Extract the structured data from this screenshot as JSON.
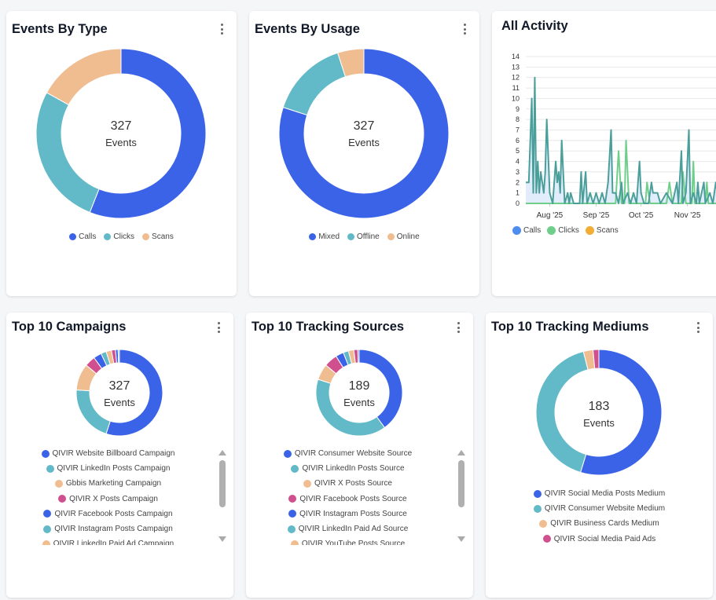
{
  "colors": {
    "blue": "#3b63e8",
    "teal": "#62b9c7",
    "peach": "#f0bd90",
    "pink": "#d04f8e",
    "calls_line": "#4a9f9b",
    "clicks_line": "#6fcf8a",
    "scans": "#f2ad35",
    "calls_legend": "#4e8cf0"
  },
  "events_by_type": {
    "title": "Events By Type",
    "total": "327",
    "unit": "Events",
    "slices": [
      {
        "label": "Calls",
        "pct": 56,
        "color": "#3b63e8"
      },
      {
        "label": "Clicks",
        "pct": 27,
        "color": "#62b9c7"
      },
      {
        "label": "Scans",
        "pct": 17,
        "color": "#f0bd90"
      }
    ]
  },
  "events_by_usage": {
    "title": "Events By Usage",
    "total": "327",
    "unit": "Events",
    "slices": [
      {
        "label": "Mixed",
        "pct": 80,
        "color": "#3b63e8"
      },
      {
        "label": "Offline",
        "pct": 15,
        "color": "#62b9c7"
      },
      {
        "label": "Online",
        "pct": 5,
        "color": "#f0bd90"
      }
    ]
  },
  "all_activity": {
    "title": "All Activity",
    "chart_data": {
      "type": "line",
      "ylim": [
        0,
        14
      ],
      "yticks": [
        0,
        1,
        2,
        3,
        4,
        5,
        6,
        7,
        8,
        9,
        10,
        11,
        12,
        13,
        14
      ],
      "xlim": [
        "2025-07-16",
        "2025-11-28"
      ],
      "xticks": [
        {
          "date": "2025-08-01",
          "label": "Aug '25"
        },
        {
          "date": "2025-09-01",
          "label": "Sep '25"
        },
        {
          "date": "2025-10-01",
          "label": "Oct '25"
        },
        {
          "date": "2025-11-01",
          "label": "Nov '25"
        }
      ],
      "grid": true,
      "legend": "bottom-left",
      "series": [
        {
          "name": "Calls",
          "color": "#4a9f9b",
          "points": [
            [
              "2025-07-16",
              2
            ],
            [
              "2025-07-18",
              2
            ],
            [
              "2025-07-20",
              10
            ],
            [
              "2025-07-21",
              1
            ],
            [
              "2025-07-22",
              12
            ],
            [
              "2025-07-23",
              1
            ],
            [
              "2025-07-24",
              4
            ],
            [
              "2025-07-25",
              1
            ],
            [
              "2025-07-26",
              3
            ],
            [
              "2025-07-28",
              1
            ],
            [
              "2025-07-29",
              3
            ],
            [
              "2025-07-30",
              8
            ],
            [
              "2025-08-01",
              1
            ],
            [
              "2025-08-03",
              0
            ],
            [
              "2025-08-05",
              4
            ],
            [
              "2025-08-06",
              2
            ],
            [
              "2025-08-07",
              3
            ],
            [
              "2025-08-08",
              1
            ],
            [
              "2025-08-09",
              6
            ],
            [
              "2025-08-11",
              0
            ],
            [
              "2025-08-13",
              1
            ],
            [
              "2025-08-14",
              0
            ],
            [
              "2025-08-15",
              1
            ],
            [
              "2025-08-17",
              0
            ],
            [
              "2025-08-21",
              0
            ],
            [
              "2025-08-22",
              3
            ],
            [
              "2025-08-23",
              0
            ],
            [
              "2025-08-25",
              3
            ],
            [
              "2025-08-26",
              0
            ],
            [
              "2025-08-28",
              1
            ],
            [
              "2025-08-30",
              0
            ],
            [
              "2025-09-01",
              1
            ],
            [
              "2025-09-03",
              0
            ],
            [
              "2025-09-05",
              1
            ],
            [
              "2025-09-07",
              0
            ],
            [
              "2025-09-09",
              2
            ],
            [
              "2025-09-11",
              7
            ],
            [
              "2025-09-12",
              1
            ],
            [
              "2025-09-14",
              1
            ],
            [
              "2025-09-16",
              0
            ],
            [
              "2025-09-18",
              2
            ],
            [
              "2025-09-19",
              0
            ],
            [
              "2025-09-22",
              1
            ],
            [
              "2025-09-24",
              0
            ],
            [
              "2025-09-26",
              1
            ],
            [
              "2025-09-28",
              0
            ],
            [
              "2025-09-30",
              4
            ],
            [
              "2025-10-01",
              1
            ],
            [
              "2025-10-03",
              0
            ],
            [
              "2025-10-06",
              0
            ],
            [
              "2025-10-08",
              2
            ],
            [
              "2025-10-09",
              1
            ],
            [
              "2025-10-12",
              1
            ],
            [
              "2025-10-14",
              0
            ],
            [
              "2025-10-18",
              1
            ],
            [
              "2025-10-22",
              0
            ],
            [
              "2025-10-25",
              2
            ],
            [
              "2025-10-26",
              0
            ],
            [
              "2025-10-28",
              5
            ],
            [
              "2025-10-29",
              0
            ],
            [
              "2025-10-31",
              1
            ],
            [
              "2025-11-02",
              7
            ],
            [
              "2025-11-03",
              0
            ],
            [
              "2025-11-05",
              1
            ],
            [
              "2025-11-07",
              0
            ],
            [
              "2025-11-08",
              2
            ],
            [
              "2025-11-09",
              0
            ],
            [
              "2025-11-12",
              2
            ],
            [
              "2025-11-13",
              0
            ],
            [
              "2025-11-16",
              1
            ],
            [
              "2025-11-18",
              0
            ],
            [
              "2025-11-20",
              2
            ],
            [
              "2025-11-22",
              0
            ],
            [
              "2025-11-26",
              2
            ],
            [
              "2025-11-28",
              1
            ]
          ]
        },
        {
          "name": "Clicks",
          "color": "#6fcf8a",
          "points": [
            [
              "2025-07-16",
              0
            ],
            [
              "2025-09-14",
              0
            ],
            [
              "2025-09-16",
              5
            ],
            [
              "2025-09-18",
              0
            ],
            [
              "2025-09-20",
              0
            ],
            [
              "2025-09-21",
              6
            ],
            [
              "2025-09-23",
              0
            ],
            [
              "2025-10-04",
              0
            ],
            [
              "2025-10-05",
              2
            ],
            [
              "2025-10-07",
              0
            ],
            [
              "2025-10-18",
              0
            ],
            [
              "2025-10-20",
              2
            ],
            [
              "2025-10-22",
              0
            ],
            [
              "2025-10-28",
              0
            ],
            [
              "2025-10-29",
              3
            ],
            [
              "2025-10-31",
              0
            ],
            [
              "2025-11-04",
              0
            ],
            [
              "2025-11-05",
              4
            ],
            [
              "2025-11-06",
              0
            ],
            [
              "2025-11-13",
              0
            ],
            [
              "2025-11-14",
              2
            ],
            [
              "2025-11-15",
              0
            ],
            [
              "2025-11-26",
              0
            ],
            [
              "2025-11-27",
              2
            ],
            [
              "2025-11-28",
              0
            ]
          ]
        },
        {
          "name": "Scans",
          "color": "#f2ad35",
          "points": []
        }
      ]
    }
  },
  "top_campaigns": {
    "title": "Top 10 Campaigns",
    "total": "327",
    "unit": "Events",
    "slices": [
      55,
      21,
      10,
      4,
      3,
      2,
      2,
      1.5,
      1,
      0.5
    ],
    "items": [
      {
        "label": "QIVIR Website Billboard Campaign",
        "color": "#3b63e8"
      },
      {
        "label": "QIVIR LinkedIn Posts Campaign",
        "color": "#62b9c7"
      },
      {
        "label": "Gbbis Marketing Campaign",
        "color": "#f0bd90"
      },
      {
        "label": "QIVIR X Posts Campaign",
        "color": "#d04f8e"
      },
      {
        "label": "QIVIR Facebook Posts Campaign",
        "color": "#3b63e8"
      },
      {
        "label": "QIVIR Instagram Posts Campaign",
        "color": "#62b9c7"
      },
      {
        "label": "QIVIR LinkedIn Paid Ad Campaign",
        "color": "#f0bd90"
      }
    ]
  },
  "top_sources": {
    "title": "Top 10 Tracking Sources",
    "total": "189",
    "unit": "Events",
    "slices": [
      40,
      40,
      6,
      5,
      3,
      2,
      2,
      1.5,
      0.5
    ],
    "items": [
      {
        "label": "QIVIR Consumer Website Source",
        "color": "#3b63e8"
      },
      {
        "label": "QIVIR LinkedIn Posts Source",
        "color": "#62b9c7"
      },
      {
        "label": "QIVIR X Posts Source",
        "color": "#f0bd90"
      },
      {
        "label": "QIVIR Facebook Posts Source",
        "color": "#d04f8e"
      },
      {
        "label": "QIVIR Instagram Posts Source",
        "color": "#3b63e8"
      },
      {
        "label": "QIVIR LinkedIn Paid Ad Source",
        "color": "#62b9c7"
      },
      {
        "label": "QIVIR YouTube Posts Source",
        "color": "#f0bd90"
      }
    ]
  },
  "top_mediums": {
    "title": "Top 10 Tracking Mediums",
    "total": "183",
    "unit": "Events",
    "slices": [
      55,
      41.5,
      2.5,
      1.5
    ],
    "items": [
      {
        "label": "QIVIR Social Media Posts Medium",
        "color": "#3b63e8"
      },
      {
        "label": "QIVIR Consumer Website Medium",
        "color": "#62b9c7"
      },
      {
        "label": "QIVIR Business Cards Medium",
        "color": "#f0bd90"
      },
      {
        "label": "QIVIR Social Media Paid Ads",
        "color": "#d04f8e"
      }
    ]
  }
}
